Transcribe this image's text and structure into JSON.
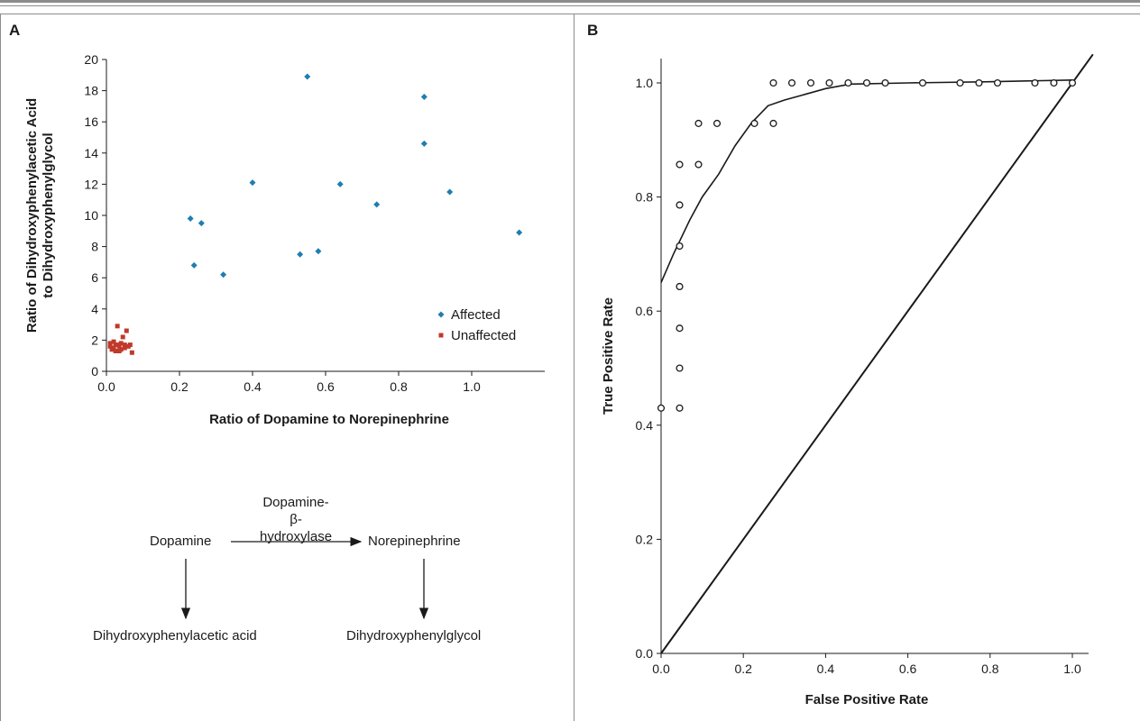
{
  "panels": {
    "a_label": "A",
    "b_label": "B"
  },
  "chart_data": [
    {
      "type": "scatter",
      "xlabel": "Ratio of Dopamine to Norepinephrine",
      "ylabel_line1": "Ratio of Dihydroxyphenylacetic Acid",
      "ylabel_line2": "to Dihydroxyphenylglycol",
      "xlim": [
        0,
        1.2
      ],
      "ylim": [
        0,
        20
      ],
      "xticks": [
        "0.0",
        "0.2",
        "0.4",
        "0.6",
        "0.8",
        "1.0"
      ],
      "yticks": [
        "0",
        "2",
        "4",
        "6",
        "8",
        "10",
        "12",
        "14",
        "16",
        "18",
        "20"
      ],
      "legend_position": "lower-right",
      "series": [
        {
          "name": "Affected",
          "color": "#1f7db0",
          "marker": "diamond",
          "points": [
            [
              0.23,
              9.8
            ],
            [
              0.24,
              6.8
            ],
            [
              0.26,
              9.5
            ],
            [
              0.32,
              6.2
            ],
            [
              0.4,
              12.1
            ],
            [
              0.53,
              7.5
            ],
            [
              0.55,
              18.9
            ],
            [
              0.58,
              7.7
            ],
            [
              0.64,
              12.0
            ],
            [
              0.74,
              10.7
            ],
            [
              0.87,
              17.6
            ],
            [
              0.87,
              14.6
            ],
            [
              0.94,
              11.5
            ],
            [
              1.13,
              8.9
            ]
          ]
        },
        {
          "name": "Unaffected",
          "color": "#c0392b",
          "marker": "square",
          "points": [
            [
              0.01,
              1.6
            ],
            [
              0.01,
              1.8
            ],
            [
              0.015,
              1.4
            ],
            [
              0.02,
              1.9
            ],
            [
              0.02,
              1.5
            ],
            [
              0.025,
              1.3
            ],
            [
              0.03,
              1.7
            ],
            [
              0.03,
              2.9
            ],
            [
              0.035,
              1.6
            ],
            [
              0.04,
              1.8
            ],
            [
              0.04,
              1.4
            ],
            [
              0.045,
              2.2
            ],
            [
              0.05,
              1.7
            ],
            [
              0.05,
              1.5
            ],
            [
              0.055,
              2.6
            ],
            [
              0.06,
              1.6
            ],
            [
              0.065,
              1.7
            ],
            [
              0.07,
              1.2
            ],
            [
              0.035,
              1.3
            ],
            [
              0.025,
              1.7
            ]
          ]
        }
      ]
    },
    {
      "type": "line",
      "xlabel": "False Positive Rate",
      "ylabel": "True Positive Rate",
      "xlim": [
        0,
        1.05
      ],
      "ylim": [
        0,
        1.05
      ],
      "xticks": [
        "0.0",
        "0.2",
        "0.4",
        "0.6",
        "0.8",
        "1.0"
      ],
      "yticks": [
        "0.0",
        "0.2",
        "0.4",
        "0.6",
        "0.8",
        "1.0"
      ],
      "roc_points": [
        [
          0.0,
          0.43
        ],
        [
          0.045,
          0.43
        ],
        [
          0.045,
          0.5
        ],
        [
          0.045,
          0.57
        ],
        [
          0.045,
          0.643
        ],
        [
          0.045,
          0.714
        ],
        [
          0.045,
          0.786
        ],
        [
          0.045,
          0.857
        ],
        [
          0.091,
          0.857
        ],
        [
          0.091,
          0.929
        ],
        [
          0.136,
          0.929
        ],
        [
          0.227,
          0.929
        ],
        [
          0.273,
          0.929
        ],
        [
          0.273,
          1.0
        ],
        [
          0.318,
          1.0
        ],
        [
          0.364,
          1.0
        ],
        [
          0.409,
          1.0
        ],
        [
          0.455,
          1.0
        ],
        [
          0.5,
          1.0
        ],
        [
          0.545,
          1.0
        ],
        [
          0.636,
          1.0
        ],
        [
          0.727,
          1.0
        ],
        [
          0.773,
          1.0
        ],
        [
          0.818,
          1.0
        ],
        [
          0.909,
          1.0
        ],
        [
          0.955,
          1.0
        ],
        [
          1.0,
          1.0
        ]
      ],
      "fitted_curve": [
        [
          0.0,
          0.65
        ],
        [
          0.03,
          0.7
        ],
        [
          0.07,
          0.76
        ],
        [
          0.1,
          0.8
        ],
        [
          0.14,
          0.84
        ],
        [
          0.18,
          0.89
        ],
        [
          0.22,
          0.93
        ],
        [
          0.26,
          0.96
        ],
        [
          0.3,
          0.97
        ],
        [
          0.35,
          0.98
        ],
        [
          0.4,
          0.99
        ],
        [
          0.46,
          0.998
        ],
        [
          0.6,
          1.0
        ],
        [
          0.8,
          1.002
        ],
        [
          1.0,
          1.005
        ]
      ],
      "reference_line": [
        [
          0.0,
          0.0
        ],
        [
          1.05,
          1.05
        ]
      ]
    }
  ],
  "diagram": {
    "enzyme_line1": "Dopamine-β-",
    "enzyme_line2": "hydroxylase",
    "left_node": "Dopamine",
    "right_node": "Norepinephrine",
    "left_product": "Dihydroxyphenylacetic acid",
    "right_product": "Dihydroxyphenylglycol"
  }
}
